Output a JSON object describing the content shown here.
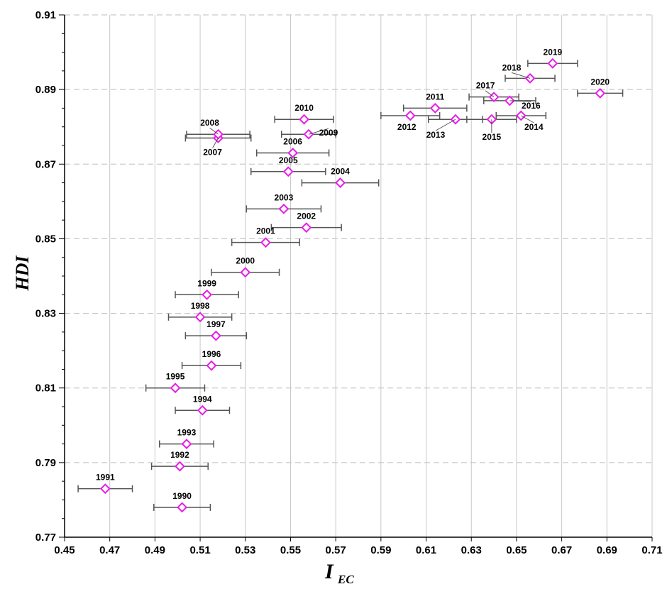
{
  "chart_data": {
    "type": "scatter",
    "xlabel": "I",
    "xlabel_sub": "EC",
    "ylabel": "HDI",
    "xlim": [
      0.45,
      0.71
    ],
    "ylim": [
      0.77,
      0.91
    ],
    "xticks": [
      "0.45",
      "0.47",
      "0.49",
      "0.51",
      "0.53",
      "0.55",
      "0.57",
      "0.59",
      "0.61",
      "0.63",
      "0.65",
      "0.67",
      "0.69",
      "0.71"
    ],
    "yticks": [
      "0.77",
      "0.79",
      "0.81",
      "0.83",
      "0.85",
      "0.87",
      "0.89",
      "0.91"
    ],
    "grid": {
      "x": "solid-light",
      "y": "dashed"
    },
    "marker": "diamond",
    "marker_color": "#e81ce8",
    "errorbar_color": "#555555",
    "points": [
      {
        "label": "1990",
        "x": 0.502,
        "y": 0.778,
        "xerr": 0.0125
      },
      {
        "label": "1991",
        "x": 0.468,
        "y": 0.783,
        "xerr": 0.012
      },
      {
        "label": "1992",
        "x": 0.501,
        "y": 0.789,
        "xerr": 0.0125
      },
      {
        "label": "1993",
        "x": 0.504,
        "y": 0.795,
        "xerr": 0.012
      },
      {
        "label": "1994",
        "x": 0.511,
        "y": 0.804,
        "xerr": 0.012
      },
      {
        "label": "1995",
        "x": 0.499,
        "y": 0.81,
        "xerr": 0.013
      },
      {
        "label": "1996",
        "x": 0.515,
        "y": 0.816,
        "xerr": 0.013
      },
      {
        "label": "1997",
        "x": 0.517,
        "y": 0.824,
        "xerr": 0.0135
      },
      {
        "label": "1998",
        "x": 0.51,
        "y": 0.829,
        "xerr": 0.014
      },
      {
        "label": "1999",
        "x": 0.513,
        "y": 0.835,
        "xerr": 0.014
      },
      {
        "label": "2000",
        "x": 0.53,
        "y": 0.841,
        "xerr": 0.015
      },
      {
        "label": "2001",
        "x": 0.539,
        "y": 0.849,
        "xerr": 0.015
      },
      {
        "label": "2002",
        "x": 0.557,
        "y": 0.853,
        "xerr": 0.0155
      },
      {
        "label": "2003",
        "x": 0.547,
        "y": 0.858,
        "xerr": 0.0165
      },
      {
        "label": "2004",
        "x": 0.572,
        "y": 0.865,
        "xerr": 0.017
      },
      {
        "label": "2005",
        "x": 0.549,
        "y": 0.868,
        "xerr": 0.0165
      },
      {
        "label": "2006",
        "x": 0.551,
        "y": 0.873,
        "xerr": 0.016
      },
      {
        "label": "2007",
        "x": 0.518,
        "y": 0.877,
        "xerr": 0.0145
      },
      {
        "label": "2008",
        "x": 0.518,
        "y": 0.878,
        "xerr": 0.014
      },
      {
        "label": "2009",
        "x": 0.558,
        "y": 0.878,
        "xerr": 0.012
      },
      {
        "label": "2010",
        "x": 0.556,
        "y": 0.882,
        "xerr": 0.013
      },
      {
        "label": "2011",
        "x": 0.614,
        "y": 0.885,
        "xerr": 0.014
      },
      {
        "label": "2012",
        "x": 0.603,
        "y": 0.883,
        "xerr": 0.013
      },
      {
        "label": "2013",
        "x": 0.623,
        "y": 0.882,
        "xerr": 0.012
      },
      {
        "label": "2014",
        "x": 0.652,
        "y": 0.883,
        "xerr": 0.011
      },
      {
        "label": "2015",
        "x": 0.639,
        "y": 0.882,
        "xerr": 0.011
      },
      {
        "label": "2016",
        "x": 0.647,
        "y": 0.887,
        "xerr": 0.0115
      },
      {
        "label": "2017",
        "x": 0.64,
        "y": 0.888,
        "xerr": 0.011
      },
      {
        "label": "2018",
        "x": 0.656,
        "y": 0.893,
        "xerr": 0.011
      },
      {
        "label": "2019",
        "x": 0.666,
        "y": 0.897,
        "xerr": 0.011
      },
      {
        "label": "2020",
        "x": 0.687,
        "y": 0.889,
        "xerr": 0.01
      }
    ]
  }
}
